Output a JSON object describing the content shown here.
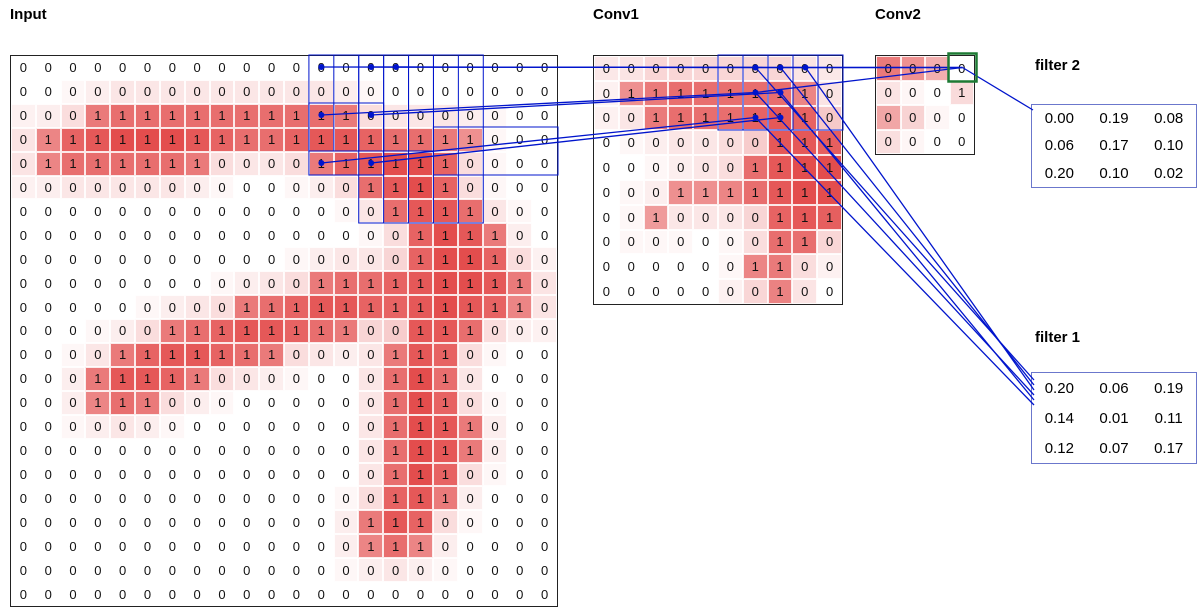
{
  "panels": {
    "input": {
      "title": "Input",
      "cols": 22,
      "rows": 23,
      "cells": [
        "0000000000000000000000",
        "0000000000000000000000",
        "0001111111111100000000",
        "0111111111111111111000",
        "0111111100001111110000",
        "0000000000000011110000",
        "0000000000000001111000",
        "0000000000000000111100",
        "0000000000000000111100",
        "0000000000001111111110",
        "0000000001111111111110",
        "0000001111111100111000",
        "0000111111100001110000",
        "0001111100000001110000",
        "0001110000000001110000",
        "0000000000000001111000",
        "0000000000000001111000",
        "0000000000000001110000",
        "0000000000000001110000",
        "0000000000000011100000",
        "0000000000000011100000",
        "0000000000000000000000",
        "0000000000000000000000"
      ]
    },
    "conv1": {
      "title": "Conv1",
      "cols": 10,
      "rows": 10,
      "cells": [
        "0000000000",
        "0111111110",
        "0011111110",
        "0000000111",
        "0000001111",
        "0001111111",
        "0010000111",
        "0000000110",
        "0000001100",
        "0000000100"
      ]
    },
    "conv2": {
      "title": "Conv2",
      "cols": 4,
      "rows": 4,
      "cells": [
        "0000",
        "0001",
        "0000",
        "0000"
      ],
      "heat": [
        [
          0.75,
          0.62,
          0.45,
          0.0
        ],
        [
          0.15,
          0.05,
          0.0,
          0.2
        ],
        [
          0.5,
          0.25,
          0.05,
          0.0
        ],
        [
          0.18,
          0.05,
          0.0,
          0.0
        ]
      ],
      "highlight": {
        "col": 3,
        "row": 0
      }
    },
    "filter2": {
      "label": "filter 2",
      "values": [
        [
          "0.00",
          "0.19",
          "0.08"
        ],
        [
          "0.06",
          "0.17",
          "0.10"
        ],
        [
          "0.20",
          "0.10",
          "0.02"
        ]
      ]
    },
    "filter1": {
      "label": "filter 1",
      "values": [
        [
          "0.20",
          "0.06",
          "0.19"
        ],
        [
          "0.14",
          "0.01",
          "0.11"
        ],
        [
          "0.12",
          "0.07",
          "0.17"
        ]
      ]
    }
  },
  "colors": {
    "accent_blue": "#0014cc",
    "highlight_green": "#1d7a34",
    "heat_red_max": "#e34d4d",
    "grid_border": "#222222"
  },
  "overlay": {
    "input_rects": [
      {
        "c": 12,
        "r": 0,
        "w": 3,
        "h": 4
      },
      {
        "c": 13,
        "r": 0,
        "w": 3,
        "h": 4
      },
      {
        "c": 14,
        "r": 0,
        "w": 3,
        "h": 4
      },
      {
        "c": 12,
        "r": 2,
        "w": 3,
        "h": 3
      },
      {
        "c": 14,
        "r": 0,
        "w": 3,
        "h": 7
      },
      {
        "c": 15,
        "r": 0,
        "w": 3,
        "h": 7
      },
      {
        "c": 16,
        "r": 0,
        "w": 3,
        "h": 7
      },
      {
        "c": 17,
        "r": 3,
        "w": 5,
        "h": 2
      }
    ],
    "conv1_rects": [
      {
        "c": 5,
        "r": 0,
        "w": 3,
        "h": 3
      },
      {
        "c": 6,
        "r": 0,
        "w": 3,
        "h": 3
      },
      {
        "c": 7,
        "r": 0,
        "w": 3,
        "h": 3
      }
    ],
    "input_dots": [
      [
        12,
        0
      ],
      [
        14,
        0
      ],
      [
        15,
        0
      ],
      [
        12,
        2
      ],
      [
        14,
        2
      ],
      [
        12,
        4
      ],
      [
        14,
        4
      ]
    ],
    "conv1_dots": [
      [
        6,
        0
      ],
      [
        7,
        0
      ],
      [
        8,
        0
      ],
      [
        6,
        1
      ],
      [
        7,
        1
      ],
      [
        6,
        2
      ],
      [
        7,
        2
      ]
    ],
    "lines": [
      {
        "from": [
          "input",
          12,
          0
        ],
        "to": [
          "conv1",
          6,
          0
        ]
      },
      {
        "from": [
          "input",
          14,
          0
        ],
        "to": [
          "conv1",
          7,
          0
        ]
      },
      {
        "from": [
          "input",
          15,
          0
        ],
        "to": [
          "conv1",
          8,
          0
        ]
      },
      {
        "from": [
          "input",
          12,
          2
        ],
        "to": [
          "conv1",
          6,
          1
        ]
      },
      {
        "from": [
          "input",
          14,
          2
        ],
        "to": [
          "conv1",
          7,
          1
        ]
      },
      {
        "from": [
          "input",
          12,
          4
        ],
        "to": [
          "conv1",
          6,
          2
        ]
      },
      {
        "from": [
          "input",
          14,
          4
        ],
        "to": [
          "conv1",
          7,
          2
        ]
      },
      {
        "from": [
          "conv1",
          6,
          0
        ],
        "to": [
          "conv2",
          3,
          0
        ]
      },
      {
        "from": [
          "conv1",
          7,
          0
        ],
        "to": [
          "conv2",
          3,
          0
        ]
      },
      {
        "from": [
          "conv1",
          8,
          0
        ],
        "to": [
          "conv2",
          3,
          0
        ]
      },
      {
        "from": [
          "conv1",
          6,
          1
        ],
        "to": [
          "conv2",
          3,
          0
        ]
      },
      {
        "from": [
          "conv1",
          6,
          0
        ],
        "to": [
          "px",
          1034,
          380
        ]
      },
      {
        "from": [
          "conv1",
          7,
          0
        ],
        "to": [
          "px",
          1034,
          385
        ]
      },
      {
        "from": [
          "conv1",
          8,
          0
        ],
        "to": [
          "px",
          1034,
          390
        ]
      },
      {
        "from": [
          "conv1",
          6,
          1
        ],
        "to": [
          "px",
          1034,
          395
        ]
      },
      {
        "from": [
          "conv1",
          7,
          1
        ],
        "to": [
          "px",
          1034,
          400
        ]
      },
      {
        "from": [
          "conv1",
          6,
          2
        ],
        "to": [
          "px",
          1034,
          405
        ]
      },
      {
        "from": [
          "conv2",
          3,
          0
        ],
        "to": [
          "px",
          1033,
          110
        ]
      }
    ]
  }
}
